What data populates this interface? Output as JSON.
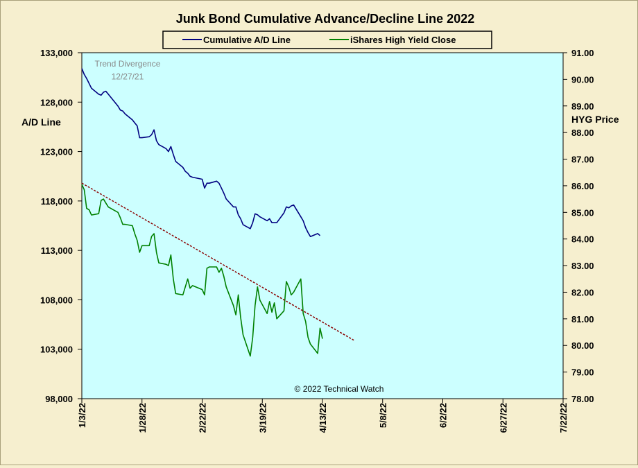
{
  "chart_data": {
    "type": "line",
    "title": "Junk Bond Cumulative  Advance/Decline  Line  2022",
    "ylabel_left": "A/D Line",
    "ylabel_right": "HYG Price",
    "ylim_left": [
      98000,
      133000
    ],
    "ylim_right": [
      78.0,
      91.0
    ],
    "yticks_left": [
      "98,000",
      "103,000",
      "108,000",
      "113,000",
      "118,000",
      "123,000",
      "128,000",
      "133,000"
    ],
    "yticks_right": [
      "78.00",
      "79.00",
      "80.00",
      "81.00",
      "82.00",
      "83.00",
      "84.00",
      "85.00",
      "86.00",
      "87.00",
      "88.00",
      "89.00",
      "90.00",
      "91.00"
    ],
    "xticks": [
      "1/3/22",
      "1/28/22",
      "2/22/22",
      "3/19/22",
      "4/13/22",
      "5/8/22",
      "6/2/22",
      "6/27/22",
      "7/22/22"
    ],
    "xlim": [
      "2022-01-03",
      "2022-07-22"
    ],
    "legend_position": "top-center",
    "colors": {
      "ad_line": "#000080",
      "hyg": "#008000",
      "trend": "#8b0000",
      "plot_bg": "#ccffff",
      "page_bg": "#f6efcf"
    },
    "annotations": [
      {
        "text": "Trend Divergence",
        "date": "2022-01-22",
        "value_left": 131600
      },
      {
        "text": "12/27/21",
        "date": "2022-01-22",
        "value_left": 130300
      }
    ],
    "credit": "© 2022 Technical Watch",
    "series": [
      {
        "name": "Cumulative A/D Line",
        "axis": "left",
        "points": [
          [
            "2022-01-03",
            131400
          ],
          [
            "2022-01-04",
            130800
          ],
          [
            "2022-01-05",
            130400
          ],
          [
            "2022-01-06",
            129900
          ],
          [
            "2022-01-07",
            129400
          ],
          [
            "2022-01-10",
            128800
          ],
          [
            "2022-01-11",
            128700
          ],
          [
            "2022-01-12",
            129000
          ],
          [
            "2022-01-13",
            129100
          ],
          [
            "2022-01-14",
            128800
          ],
          [
            "2022-01-18",
            127600
          ],
          [
            "2022-01-19",
            127200
          ],
          [
            "2022-01-20",
            127100
          ],
          [
            "2022-01-21",
            126800
          ],
          [
            "2022-01-24",
            126200
          ],
          [
            "2022-01-25",
            125900
          ],
          [
            "2022-01-26",
            125600
          ],
          [
            "2022-01-27",
            124400
          ],
          [
            "2022-01-28",
            124400
          ],
          [
            "2022-01-31",
            124500
          ],
          [
            "2022-02-01",
            124700
          ],
          [
            "2022-02-02",
            125200
          ],
          [
            "2022-02-03",
            124100
          ],
          [
            "2022-02-04",
            123700
          ],
          [
            "2022-02-07",
            123300
          ],
          [
            "2022-02-08",
            123000
          ],
          [
            "2022-02-09",
            123500
          ],
          [
            "2022-02-10",
            122700
          ],
          [
            "2022-02-11",
            122000
          ],
          [
            "2022-02-14",
            121400
          ],
          [
            "2022-02-15",
            121000
          ],
          [
            "2022-02-16",
            120800
          ],
          [
            "2022-02-17",
            120500
          ],
          [
            "2022-02-18",
            120400
          ],
          [
            "2022-02-22",
            120200
          ],
          [
            "2022-02-23",
            119300
          ],
          [
            "2022-02-24",
            119800
          ],
          [
            "2022-02-25",
            119800
          ],
          [
            "2022-02-28",
            120000
          ],
          [
            "2022-03-01",
            119800
          ],
          [
            "2022-03-02",
            119300
          ],
          [
            "2022-03-03",
            118800
          ],
          [
            "2022-03-04",
            118200
          ],
          [
            "2022-03-07",
            117400
          ],
          [
            "2022-03-08",
            117400
          ],
          [
            "2022-03-09",
            116600
          ],
          [
            "2022-03-10",
            116200
          ],
          [
            "2022-03-11",
            115600
          ],
          [
            "2022-03-14",
            115200
          ],
          [
            "2022-03-15",
            115800
          ],
          [
            "2022-03-16",
            116700
          ],
          [
            "2022-03-17",
            116600
          ],
          [
            "2022-03-18",
            116400
          ],
          [
            "2022-03-21",
            116000
          ],
          [
            "2022-03-22",
            116200
          ],
          [
            "2022-03-23",
            115800
          ],
          [
            "2022-03-24",
            115800
          ],
          [
            "2022-03-25",
            115800
          ],
          [
            "2022-03-28",
            116800
          ],
          [
            "2022-03-29",
            117400
          ],
          [
            "2022-03-30",
            117300
          ],
          [
            "2022-03-31",
            117500
          ],
          [
            "2022-04-01",
            117600
          ],
          [
            "2022-04-04",
            116400
          ],
          [
            "2022-04-05",
            116000
          ],
          [
            "2022-04-06",
            115300
          ],
          [
            "2022-04-07",
            114800
          ],
          [
            "2022-04-08",
            114400
          ],
          [
            "2022-04-11",
            114700
          ],
          [
            "2022-04-12",
            114500
          ]
        ]
      },
      {
        "name": "iShares High Yield Close",
        "axis": "right",
        "points": [
          [
            "2022-01-03",
            86.05
          ],
          [
            "2022-01-04",
            85.85
          ],
          [
            "2022-01-05",
            85.15
          ],
          [
            "2022-01-06",
            85.1
          ],
          [
            "2022-01-07",
            84.9
          ],
          [
            "2022-01-10",
            84.95
          ],
          [
            "2022-01-11",
            85.45
          ],
          [
            "2022-01-12",
            85.5
          ],
          [
            "2022-01-13",
            85.35
          ],
          [
            "2022-01-14",
            85.2
          ],
          [
            "2022-01-18",
            85.0
          ],
          [
            "2022-01-19",
            84.8
          ],
          [
            "2022-01-20",
            84.55
          ],
          [
            "2022-01-21",
            84.55
          ],
          [
            "2022-01-24",
            84.5
          ],
          [
            "2022-01-25",
            84.2
          ],
          [
            "2022-01-26",
            83.95
          ],
          [
            "2022-01-27",
            83.5
          ],
          [
            "2022-01-28",
            83.75
          ],
          [
            "2022-01-31",
            83.75
          ],
          [
            "2022-02-01",
            84.1
          ],
          [
            "2022-02-02",
            84.2
          ],
          [
            "2022-02-03",
            83.5
          ],
          [
            "2022-02-04",
            83.1
          ],
          [
            "2022-02-07",
            83.05
          ],
          [
            "2022-02-08",
            83.0
          ],
          [
            "2022-02-09",
            83.4
          ],
          [
            "2022-02-10",
            82.5
          ],
          [
            "2022-02-11",
            81.95
          ],
          [
            "2022-02-14",
            81.9
          ],
          [
            "2022-02-15",
            82.2
          ],
          [
            "2022-02-16",
            82.5
          ],
          [
            "2022-02-17",
            82.15
          ],
          [
            "2022-02-18",
            82.25
          ],
          [
            "2022-02-22",
            82.1
          ],
          [
            "2022-02-23",
            81.9
          ],
          [
            "2022-02-24",
            82.9
          ],
          [
            "2022-02-25",
            82.95
          ],
          [
            "2022-02-28",
            82.95
          ],
          [
            "2022-03-01",
            82.75
          ],
          [
            "2022-03-02",
            82.9
          ],
          [
            "2022-03-03",
            82.6
          ],
          [
            "2022-03-04",
            82.2
          ],
          [
            "2022-03-07",
            81.5
          ],
          [
            "2022-03-08",
            81.15
          ],
          [
            "2022-03-09",
            81.9
          ],
          [
            "2022-03-10",
            81.05
          ],
          [
            "2022-03-11",
            80.4
          ],
          [
            "2022-03-14",
            79.6
          ],
          [
            "2022-03-15",
            80.3
          ],
          [
            "2022-03-16",
            81.5
          ],
          [
            "2022-03-17",
            82.2
          ],
          [
            "2022-03-18",
            81.7
          ],
          [
            "2022-03-21",
            81.2
          ],
          [
            "2022-03-22",
            81.65
          ],
          [
            "2022-03-23",
            81.25
          ],
          [
            "2022-03-24",
            81.6
          ],
          [
            "2022-03-25",
            81.0
          ],
          [
            "2022-03-28",
            81.3
          ],
          [
            "2022-03-29",
            82.4
          ],
          [
            "2022-03-30",
            82.2
          ],
          [
            "2022-03-31",
            81.9
          ],
          [
            "2022-04-01",
            82.0
          ],
          [
            "2022-04-04",
            82.5
          ],
          [
            "2022-04-05",
            81.2
          ],
          [
            "2022-04-06",
            80.9
          ],
          [
            "2022-04-07",
            80.3
          ],
          [
            "2022-04-08",
            80.05
          ],
          [
            "2022-04-11",
            79.7
          ],
          [
            "2022-04-12",
            80.65
          ],
          [
            "2022-04-13",
            80.25
          ]
        ]
      },
      {
        "name": "",
        "axis": "right",
        "style": "dashed",
        "points": [
          [
            "2022-01-03",
            86.1
          ],
          [
            "2022-04-26",
            80.2
          ]
        ]
      }
    ]
  }
}
